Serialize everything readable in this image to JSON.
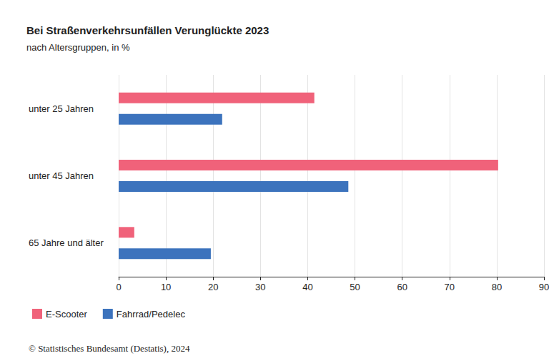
{
  "chart_data": {
    "type": "bar",
    "title": "Bei Straßenverkehrsunfällen Verunglückte 2023",
    "subtitle": "nach Altersgruppen, in %",
    "categories": [
      "unter 25 Jahren",
      "unter 45 Jahren",
      "65 Jahre und älter"
    ],
    "series": [
      {
        "name": "E-Scooter",
        "color": "#f0627a",
        "values": [
          41.4,
          80.3,
          3.3
        ]
      },
      {
        "name": "Fahrrad/Pedelec",
        "color": "#3c73bd",
        "values": [
          21.9,
          48.6,
          19.5
        ]
      }
    ],
    "xlim": [
      0,
      90
    ],
    "xticks": [
      0,
      10,
      20,
      30,
      40,
      50,
      60,
      70,
      80,
      90
    ],
    "orientation": "horizontal",
    "grid": true,
    "legend": "bottom-left",
    "annotations": [
      "© Statistisches Bundesamt (Destatis), 2024"
    ]
  }
}
